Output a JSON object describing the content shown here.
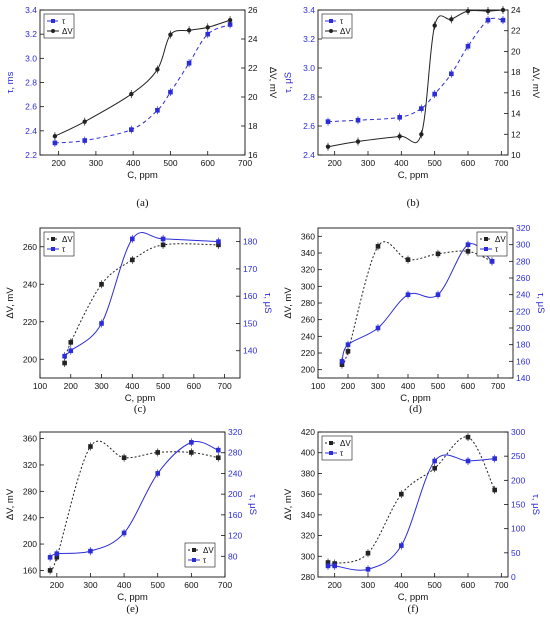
{
  "colors": {
    "black": "#222222",
    "blue": "#2c2cd8",
    "ink": "#111111"
  },
  "chart_data": [
    {
      "id": "a",
      "type": "line",
      "panel_label": "(a)",
      "xlabel": "C, ppm",
      "ylabel_left": "τ, ms",
      "ylabel_right": "ΔV, mV",
      "xlim": [
        150,
        700
      ],
      "xticks": [
        200,
        300,
        400,
        500,
        600,
        700
      ],
      "ylim_left": [
        2.2,
        3.4
      ],
      "yticks_left": [
        2.2,
        2.4,
        2.6,
        2.8,
        3.0,
        3.2,
        3.4
      ],
      "ylim_right": [
        16,
        26
      ],
      "yticks_right": [
        16,
        18,
        20,
        22,
        24,
        26
      ],
      "legend_position": "top-left",
      "series": [
        {
          "name": "τ",
          "axis": "left",
          "color": "blue",
          "marker": "square",
          "dash": "4,3",
          "x": [
            190,
            270,
            395,
            465,
            500,
            550,
            600,
            660
          ],
          "y": [
            2.3,
            2.32,
            2.41,
            2.57,
            2.72,
            2.96,
            3.2,
            3.28
          ]
        },
        {
          "name": "ΔV",
          "axis": "right",
          "color": "black",
          "marker": "circle",
          "dash": "",
          "x": [
            190,
            270,
            395,
            465,
            500,
            550,
            600,
            660
          ],
          "y": [
            17.3,
            18.3,
            20.2,
            21.9,
            24.3,
            24.6,
            24.8,
            25.3
          ]
        }
      ]
    },
    {
      "id": "b",
      "type": "line",
      "panel_label": "(b)",
      "xlabel": "C, ppm",
      "ylabel_left": "τ, μS",
      "ylabel_right": "ΔV, mV",
      "xlim": [
        150,
        720
      ],
      "xticks": [
        200,
        300,
        400,
        500,
        600,
        700
      ],
      "ylim_left": [
        2.4,
        3.4
      ],
      "yticks_left": [
        2.4,
        2.6,
        2.8,
        3.0,
        3.2,
        3.4
      ],
      "ylim_right": [
        10,
        24
      ],
      "yticks_right": [
        10,
        12,
        14,
        16,
        18,
        20,
        22,
        24
      ],
      "legend_position": "top-left",
      "series": [
        {
          "name": "τ",
          "axis": "left",
          "color": "blue",
          "marker": "square",
          "dash": "4,3",
          "x": [
            180,
            270,
            395,
            460,
            500,
            550,
            600,
            660,
            705
          ],
          "y": [
            2.63,
            2.64,
            2.66,
            2.72,
            2.82,
            2.96,
            3.15,
            3.33,
            3.33
          ]
        },
        {
          "name": "ΔV",
          "axis": "left_ref_right",
          "color": "black",
          "marker": "circle",
          "dash": "",
          "x": [
            180,
            270,
            395,
            460,
            500,
            550,
            600,
            660,
            705
          ],
          "y": [
            10.8,
            11.3,
            11.8,
            12.0,
            22.5,
            23.1,
            23.9,
            23.9,
            24.0
          ]
        }
      ]
    },
    {
      "id": "c",
      "type": "line",
      "panel_label": "(c)",
      "xlabel": "C, ppm",
      "ylabel_left": "ΔV, mV",
      "ylabel_right": "τ, μS",
      "xlim": [
        100,
        750
      ],
      "xticks": [
        100,
        200,
        300,
        400,
        500,
        600,
        700
      ],
      "ylim_left": [
        190,
        270
      ],
      "yticks_left": [
        200,
        220,
        240,
        260
      ],
      "ylim_right": [
        130,
        185
      ],
      "yticks_right": [
        140,
        150,
        160,
        170,
        180
      ],
      "legend_position": "top-left",
      "series": [
        {
          "name": "ΔV",
          "axis": "left",
          "color": "black",
          "marker": "square",
          "dash": "2,2",
          "x": [
            180,
            200,
            300,
            400,
            500,
            680
          ],
          "y": [
            198,
            209,
            240,
            253,
            261,
            261
          ]
        },
        {
          "name": "τ",
          "axis": "right",
          "color": "blue",
          "marker": "square",
          "dash": "",
          "x": [
            180,
            200,
            300,
            400,
            500,
            680
          ],
          "y": [
            138,
            140,
            150,
            181,
            181,
            180
          ]
        }
      ]
    },
    {
      "id": "d",
      "type": "line",
      "panel_label": "(d)",
      "xlabel": "C, ppm",
      "ylabel_left": "ΔV, mV",
      "ylabel_right": "τ, μS",
      "xlim": [
        100,
        750
      ],
      "xticks": [
        100,
        200,
        300,
        400,
        500,
        600,
        700
      ],
      "ylim_left": [
        190,
        370
      ],
      "yticks_left": [
        200,
        220,
        240,
        260,
        280,
        300,
        320,
        340,
        360
      ],
      "ylim_right": [
        140,
        320
      ],
      "yticks_right": [
        140,
        160,
        180,
        200,
        220,
        240,
        260,
        280,
        300,
        320
      ],
      "legend_position": "top-right",
      "series": [
        {
          "name": "ΔV",
          "axis": "left",
          "color": "black",
          "marker": "square",
          "dash": "2,2",
          "x": [
            180,
            200,
            300,
            400,
            500,
            600,
            680
          ],
          "y": [
            206,
            222,
            348,
            332,
            339,
            342,
            330
          ]
        },
        {
          "name": "τ",
          "axis": "right",
          "color": "blue",
          "marker": "square",
          "dash": "",
          "x": [
            180,
            200,
            300,
            400,
            500,
            600,
            680
          ],
          "y": [
            160,
            180,
            200,
            240,
            240,
            300,
            280
          ]
        }
      ]
    },
    {
      "id": "e",
      "type": "line",
      "panel_label": "(e)",
      "xlabel": "C, ppm",
      "ylabel_left": "ΔV, mV",
      "ylabel_right": "τ, μS",
      "xlim": [
        150,
        700
      ],
      "xticks": [
        200,
        300,
        400,
        500,
        600,
        700
      ],
      "ylim_left": [
        150,
        370
      ],
      "yticks_left": [
        160,
        200,
        240,
        280,
        320,
        360
      ],
      "ylim_right": [
        40,
        320
      ],
      "yticks_right": [
        80,
        120,
        160,
        200,
        240,
        280,
        320
      ],
      "legend_position": "bottom-right",
      "series": [
        {
          "name": "ΔV",
          "axis": "left",
          "color": "black",
          "marker": "square",
          "dash": "2,2",
          "x": [
            180,
            200,
            300,
            400,
            500,
            600,
            680
          ],
          "y": [
            160,
            180,
            348,
            331,
            339,
            339,
            331
          ]
        },
        {
          "name": "τ",
          "axis": "right",
          "color": "blue",
          "marker": "square",
          "dash": "",
          "x": [
            180,
            200,
            300,
            400,
            500,
            600,
            680
          ],
          "y": [
            78,
            85,
            90,
            125,
            240,
            300,
            285
          ]
        }
      ]
    },
    {
      "id": "f",
      "type": "line",
      "panel_label": "(f)",
      "xlabel": "C, ppm",
      "ylabel_left": "ΔV, mV",
      "ylabel_right": "τ, μS",
      "xlim": [
        150,
        720
      ],
      "xticks": [
        200,
        300,
        400,
        500,
        600,
        700
      ],
      "ylim_left": [
        280,
        420
      ],
      "yticks_left": [
        280,
        300,
        320,
        340,
        360,
        380,
        400,
        420
      ],
      "ylim_right": [
        0,
        300
      ],
      "yticks_right": [
        0,
        50,
        100,
        150,
        200,
        250,
        300
      ],
      "legend_position": "top-left",
      "series": [
        {
          "name": "ΔV",
          "axis": "left",
          "color": "black",
          "marker": "square",
          "dash": "2,2",
          "x": [
            180,
            200,
            300,
            400,
            500,
            600,
            680
          ],
          "y": [
            294,
            293,
            303,
            360,
            385,
            415,
            364
          ]
        },
        {
          "name": "τ",
          "axis": "right",
          "color": "blue",
          "marker": "square",
          "dash": "",
          "x": [
            180,
            200,
            300,
            400,
            500,
            600,
            680
          ],
          "y": [
            23,
            23,
            16,
            65,
            240,
            240,
            245
          ]
        }
      ]
    }
  ]
}
